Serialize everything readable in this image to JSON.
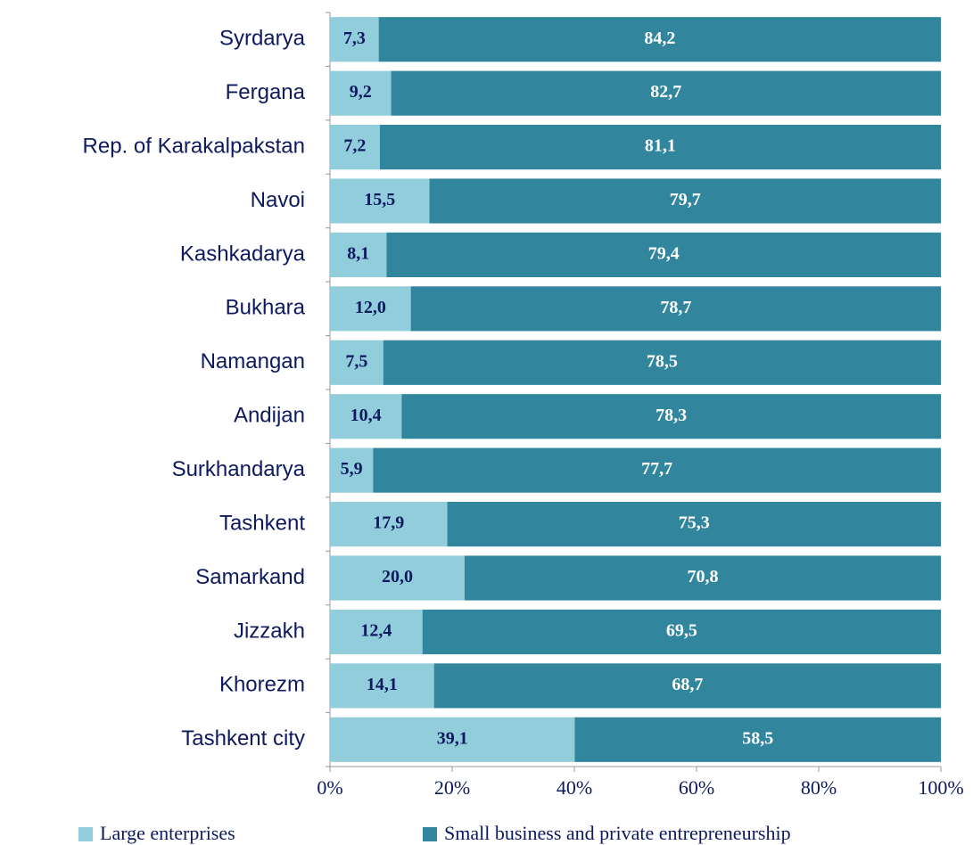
{
  "chart_data": {
    "type": "bar",
    "orientation": "horizontal",
    "stacking": "percent",
    "categories": [
      "Syrdarya",
      "Fergana",
      "Rep. of Karakalpakstan",
      "Navoi",
      "Kashkadarya",
      "Bukhara",
      "Namangan",
      "Andijan",
      "Surkhandarya",
      "Tashkent",
      "Samarkand",
      "Jizzakh",
      "Khorezm",
      "Tashkent city"
    ],
    "series": [
      {
        "name": "Large enterprises",
        "color": "#92cddc",
        "label_color": "#0d1a5e",
        "values": [
          7.3,
          9.2,
          7.2,
          15.5,
          8.1,
          12.0,
          7.5,
          10.4,
          5.9,
          17.9,
          20.0,
          12.4,
          14.1,
          39.1
        ],
        "value_labels": [
          "7,3",
          "9,2",
          "7,2",
          "15,5",
          "8,1",
          "12,0",
          "7,5",
          "10,4",
          "5,9",
          "17,9",
          "20,0",
          "12,4",
          "14,1",
          "39,1"
        ]
      },
      {
        "name": "Small business and private entrepreneurship",
        "color": "#31859c",
        "label_color": "#ffffff",
        "values": [
          84.2,
          82.7,
          81.1,
          79.7,
          79.4,
          78.7,
          78.5,
          78.3,
          77.7,
          75.3,
          70.8,
          69.5,
          68.7,
          58.5
        ],
        "value_labels": [
          "84,2",
          "82,7",
          "81,1",
          "79,7",
          "79,4",
          "78,7",
          "78,5",
          "78,3",
          "77,7",
          "75,3",
          "70,8",
          "69,5",
          "68,7",
          "58,5"
        ]
      }
    ],
    "xlim": [
      0,
      100
    ],
    "xticks": [
      {
        "value": 0,
        "label": "0%"
      },
      {
        "value": 20,
        "label": "20%"
      },
      {
        "value": 40,
        "label": "40%"
      },
      {
        "value": 60,
        "label": "60%"
      },
      {
        "value": 80,
        "label": "80%"
      },
      {
        "value": 100,
        "label": "100%"
      }
    ],
    "grid": false,
    "legend": "bottom"
  }
}
